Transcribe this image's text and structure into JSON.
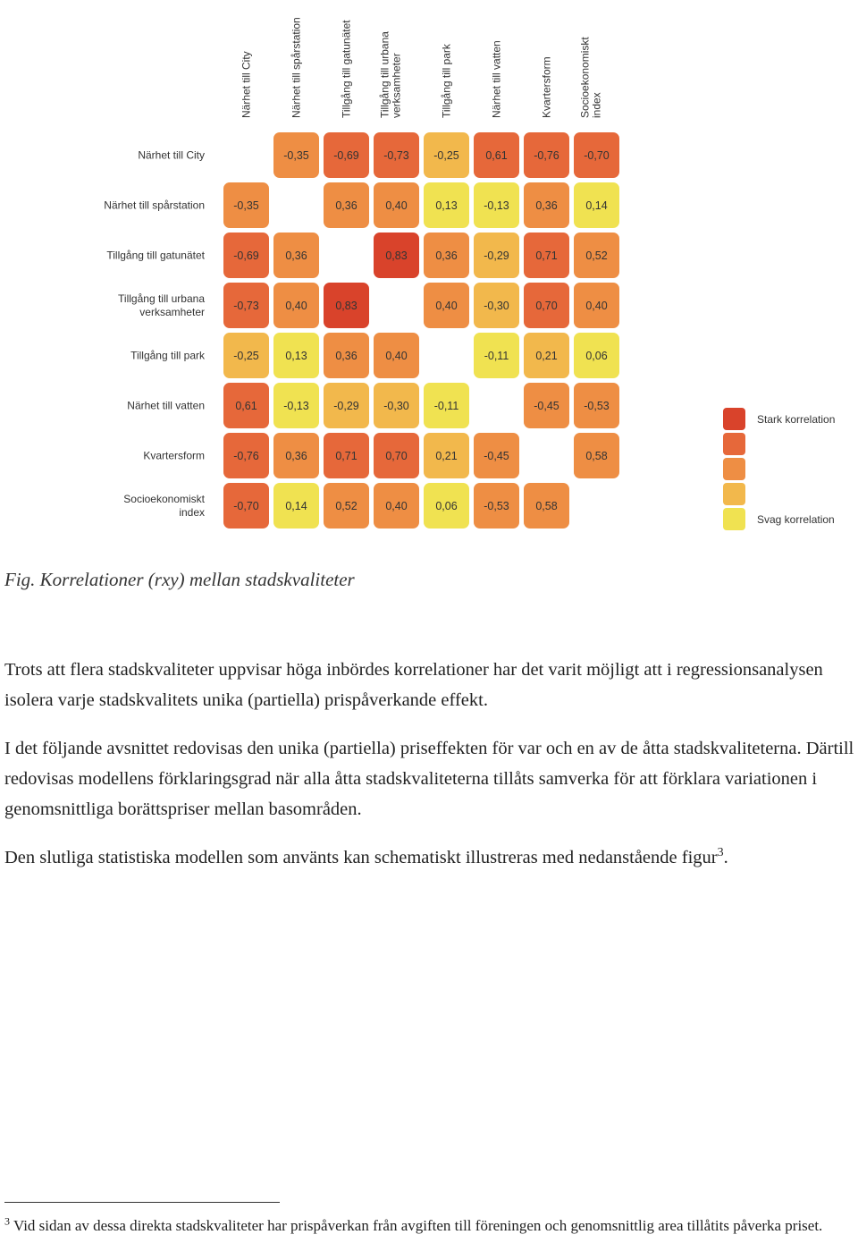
{
  "chart_data": {
    "type": "heatmap",
    "labels": [
      [
        "Närhet till City"
      ],
      [
        "Närhet till spårstation"
      ],
      [
        "Tillgång till gatunätet"
      ],
      [
        "Tillgång till urbana",
        "verksamheter"
      ],
      [
        "Tillgång till park"
      ],
      [
        "Närhet till vatten"
      ],
      [
        "Kvartersform"
      ],
      [
        "Socioekonomiskt",
        "index"
      ]
    ],
    "matrix": [
      [
        null,
        -0.35,
        -0.69,
        -0.73,
        -0.25,
        0.61,
        -0.76,
        -0.7
      ],
      [
        -0.35,
        null,
        0.36,
        0.4,
        0.13,
        -0.13,
        0.36,
        0.14
      ],
      [
        -0.69,
        0.36,
        null,
        0.83,
        0.36,
        -0.29,
        0.71,
        0.52
      ],
      [
        -0.73,
        0.4,
        0.83,
        null,
        0.4,
        -0.3,
        0.7,
        0.4
      ],
      [
        -0.25,
        0.13,
        0.36,
        0.4,
        null,
        -0.11,
        0.21,
        0.06
      ],
      [
        0.61,
        -0.13,
        -0.29,
        -0.3,
        -0.11,
        null,
        -0.45,
        -0.53
      ],
      [
        -0.76,
        0.36,
        0.71,
        0.7,
        0.21,
        -0.45,
        null,
        0.58
      ],
      [
        -0.7,
        0.14,
        0.52,
        0.4,
        0.06,
        -0.53,
        0.58,
        null
      ]
    ],
    "legend": {
      "top_label": "Stark korrelation",
      "bottom_label": "Svag korrelation",
      "colors": [
        "#d9432b",
        "#e6683a",
        "#ee8e44",
        "#f2b84c",
        "#f0e251"
      ]
    }
  },
  "caption": "Fig. Korrelationer (rxy) mellan stadskvaliteter",
  "paragraphs": {
    "p1": "Trots att flera stadskvaliteter uppvisar höga inbördes korrelationer har det varit möjligt att i regressionsanalysen isolera varje stadskvalitets unika (partiella) prispåverkande effekt.",
    "p2": "I det följande avsnittet redovisas den unika (partiella) priseffekten för var och en av de åtta stadskvaliteterna. Därtill redovisas modellens förklaringsgrad när alla åtta stadskvaliteterna tillåts samverka för att förklara variationen i genomsnittliga borättspriser mellan basområden.",
    "p3": "Den slutliga statistiska modellen som använts kan schematiskt illustreras med nedanstående figur",
    "p3_ref": "3",
    "p3_end": "."
  },
  "footnote": {
    "mark": "3",
    "text": "Vid sidan av dessa direkta stadskvaliteter har prispåverkan från avgiften till föreningen och genomsnittlig area tillåtits påverka priset."
  }
}
